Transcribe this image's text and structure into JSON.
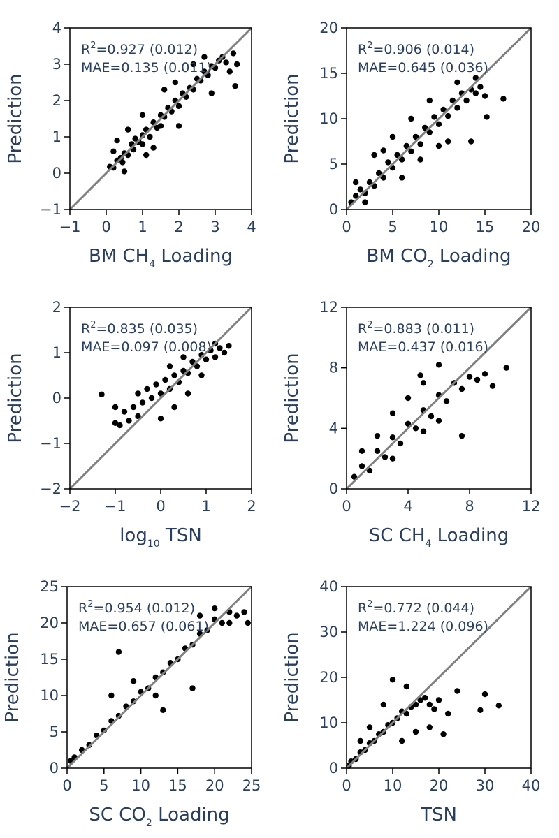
{
  "chart_data": [
    {
      "type": "scatter",
      "xlabel": "BM CH",
      "xlabel_sub": "4",
      "xlabel_suffix": " Loading",
      "ylabel": "Prediction",
      "xlim": [
        -1,
        4
      ],
      "ylim": [
        -1,
        4
      ],
      "xticks": [
        -1,
        0,
        1,
        2,
        3,
        4
      ],
      "yticks": [
        -1,
        0,
        1,
        2,
        3,
        4
      ],
      "xtick_labels": [
        "−1",
        "0",
        "1",
        "2",
        "3",
        "4"
      ],
      "ytick_labels": [
        "−1",
        "0",
        "1",
        "2",
        "3",
        "4"
      ],
      "annotation": {
        "r2_value": "=0.927 (0.012)",
        "mae_text": "MAE=0.135 (0.011)"
      },
      "identity_line": true,
      "point_color": "#000000",
      "points": [
        [
          0.1,
          0.18
        ],
        [
          0.2,
          0.15
        ],
        [
          0.3,
          0.35
        ],
        [
          0.4,
          0.42
        ],
        [
          0.45,
          0.3
        ],
        [
          0.5,
          0.55
        ],
        [
          0.6,
          0.5
        ],
        [
          0.7,
          0.8
        ],
        [
          0.75,
          0.65
        ],
        [
          0.8,
          0.95
        ],
        [
          0.9,
          0.85
        ],
        [
          1.0,
          1.05
        ],
        [
          1.0,
          0.8
        ],
        [
          1.1,
          1.2
        ],
        [
          1.2,
          1.0
        ],
        [
          1.3,
          1.4
        ],
        [
          1.4,
          1.25
        ],
        [
          1.5,
          1.6
        ],
        [
          1.5,
          1.3
        ],
        [
          1.6,
          1.55
        ],
        [
          1.7,
          1.8
        ],
        [
          1.8,
          1.7
        ],
        [
          1.9,
          2.0
        ],
        [
          2.0,
          1.85
        ],
        [
          2.1,
          2.2
        ],
        [
          2.2,
          2.1
        ],
        [
          2.3,
          2.35
        ],
        [
          2.4,
          2.3
        ],
        [
          2.5,
          2.6
        ],
        [
          2.6,
          2.55
        ],
        [
          2.7,
          2.8
        ],
        [
          2.8,
          2.7
        ],
        [
          2.9,
          2.95
        ],
        [
          3.0,
          2.9
        ],
        [
          3.1,
          3.1
        ],
        [
          3.2,
          3.2
        ],
        [
          3.3,
          3.05
        ],
        [
          3.5,
          3.3
        ],
        [
          3.6,
          3.0
        ],
        [
          3.55,
          2.4
        ],
        [
          0.3,
          0.9
        ],
        [
          0.6,
          1.2
        ],
        [
          1.0,
          1.6
        ],
        [
          1.1,
          0.5
        ],
        [
          1.6,
          2.3
        ],
        [
          2.0,
          1.3
        ],
        [
          2.4,
          3.0
        ],
        [
          2.9,
          2.2
        ],
        [
          0.2,
          0.6
        ],
        [
          0.5,
          0.05
        ],
        [
          1.3,
          0.7
        ],
        [
          1.9,
          2.5
        ],
        [
          2.7,
          3.2
        ],
        [
          3.4,
          2.8
        ]
      ]
    },
    {
      "type": "scatter",
      "xlabel": "BM CO",
      "xlabel_sub": "2",
      "xlabel_suffix": " Loading",
      "ylabel": "Prediction",
      "xlim": [
        0,
        20
      ],
      "ylim": [
        0,
        20
      ],
      "xticks": [
        0,
        5,
        10,
        15,
        20
      ],
      "yticks": [
        0,
        5,
        10,
        15,
        20
      ],
      "xtick_labels": [
        "0",
        "5",
        "10",
        "15",
        "20"
      ],
      "ytick_labels": [
        "0",
        "5",
        "10",
        "15",
        "20"
      ],
      "annotation": {
        "r2_value": "=0.906 (0.014)",
        "mae_text": "MAE=0.645 (0.036)"
      },
      "identity_line": true,
      "point_color": "#000000",
      "points": [
        [
          0.5,
          0.8
        ],
        [
          1,
          1.5
        ],
        [
          1.5,
          2.2
        ],
        [
          2,
          1.8
        ],
        [
          2.5,
          3.0
        ],
        [
          3,
          2.6
        ],
        [
          3.5,
          4.0
        ],
        [
          4,
          3.5
        ],
        [
          4.5,
          5.2
        ],
        [
          5,
          4.6
        ],
        [
          5.5,
          6.0
        ],
        [
          6,
          5.5
        ],
        [
          6.5,
          7.0
        ],
        [
          7,
          6.4
        ],
        [
          7.5,
          8.0
        ],
        [
          8,
          7.2
        ],
        [
          8.5,
          9.0
        ],
        [
          9,
          8.5
        ],
        [
          9.5,
          10.2
        ],
        [
          10,
          9.4
        ],
        [
          10.5,
          11.0
        ],
        [
          11,
          10.3
        ],
        [
          11.5,
          12.0
        ],
        [
          12,
          11.2
        ],
        [
          12.5,
          12.8
        ],
        [
          13,
          12.0
        ],
        [
          13.5,
          13.2
        ],
        [
          14,
          12.8
        ],
        [
          14.5,
          13.5
        ],
        [
          15,
          12.5
        ],
        [
          17,
          12.2
        ],
        [
          15.2,
          10.2
        ],
        [
          13.5,
          7.5
        ],
        [
          3,
          6
        ],
        [
          5,
          8
        ],
        [
          7,
          10
        ],
        [
          9,
          12
        ],
        [
          6,
          3.5
        ],
        [
          8,
          5.5
        ],
        [
          10,
          7
        ],
        [
          1,
          3
        ],
        [
          2,
          0.8
        ],
        [
          4,
          6.5
        ],
        [
          12,
          14
        ],
        [
          11,
          7.5
        ],
        [
          14,
          14.5
        ]
      ]
    },
    {
      "type": "scatter",
      "xlabel": "log",
      "xlabel_sub": "10",
      "xlabel_suffix": " TSN",
      "ylabel": "Prediction",
      "xlim": [
        -2,
        2
      ],
      "ylim": [
        -2,
        2
      ],
      "xticks": [
        -2,
        -1,
        0,
        1,
        2
      ],
      "yticks": [
        -2,
        -1,
        0,
        1,
        2
      ],
      "xtick_labels": [
        "−2",
        "−1",
        "0",
        "1",
        "2"
      ],
      "ytick_labels": [
        "−2",
        "−1",
        "0",
        "1",
        "2"
      ],
      "annotation": {
        "r2_value": "=0.835 (0.035)",
        "mae_text": "MAE=0.097 (0.008)"
      },
      "identity_line": true,
      "point_color": "#000000",
      "points": [
        [
          -1.3,
          0.08
        ],
        [
          -1.0,
          -0.55
        ],
        [
          -1.0,
          -0.2
        ],
        [
          -0.9,
          -0.6
        ],
        [
          -0.8,
          -0.3
        ],
        [
          -0.7,
          -0.5
        ],
        [
          -0.6,
          -0.2
        ],
        [
          -0.5,
          0.1
        ],
        [
          -0.4,
          -0.1
        ],
        [
          -0.3,
          0.2
        ],
        [
          -0.2,
          0.0
        ],
        [
          -0.1,
          0.3
        ],
        [
          0.0,
          0.1
        ],
        [
          0.1,
          0.4
        ],
        [
          0.2,
          0.2
        ],
        [
          0.3,
          0.5
        ],
        [
          0.4,
          0.35
        ],
        [
          0.5,
          0.6
        ],
        [
          0.6,
          0.55
        ],
        [
          0.7,
          0.8
        ],
        [
          0.8,
          0.7
        ],
        [
          0.9,
          0.95
        ],
        [
          1.0,
          0.85
        ],
        [
          1.1,
          1.05
        ],
        [
          1.2,
          0.9
        ],
        [
          1.3,
          1.1
        ],
        [
          1.4,
          1.0
        ],
        [
          1.5,
          1.15
        ],
        [
          0.3,
          -0.2
        ],
        [
          0.6,
          0.1
        ],
        [
          0.9,
          0.5
        ],
        [
          0.0,
          -0.45
        ],
        [
          -0.5,
          -0.4
        ],
        [
          0.2,
          0.7
        ],
        [
          0.5,
          0.9
        ],
        [
          1.2,
          1.2
        ]
      ]
    },
    {
      "type": "scatter",
      "xlabel": "SC CH",
      "xlabel_sub": "4",
      "xlabel_suffix": " Loading",
      "ylabel": "Prediction",
      "xlim": [
        0,
        12
      ],
      "ylim": [
        0,
        12
      ],
      "xticks": [
        0,
        4,
        8,
        12
      ],
      "yticks": [
        0,
        4,
        8,
        12
      ],
      "xtick_labels": [
        "0",
        "4",
        "8",
        "12"
      ],
      "ytick_labels": [
        "0",
        "4",
        "8",
        "12"
      ],
      "annotation": {
        "r2_value": "=0.883 (0.011)",
        "mae_text": "MAE=0.437 (0.016)"
      },
      "identity_line": true,
      "point_color": "#000000",
      "points": [
        [
          0.5,
          0.8
        ],
        [
          1.0,
          1.5
        ],
        [
          1.5,
          1.2
        ],
        [
          2.0,
          2.5
        ],
        [
          2.5,
          2.1
        ],
        [
          3.0,
          3.4
        ],
        [
          3.5,
          3.0
        ],
        [
          4.0,
          4.3
        ],
        [
          4.5,
          4.0
        ],
        [
          5.0,
          5.2
        ],
        [
          5.5,
          4.8
        ],
        [
          6.0,
          6.2
        ],
        [
          6.5,
          5.8
        ],
        [
          7.0,
          7.0
        ],
        [
          7.5,
          6.6
        ],
        [
          8.0,
          7.4
        ],
        [
          8.5,
          7.2
        ],
        [
          9.0,
          7.6
        ],
        [
          9.5,
          6.8
        ],
        [
          10.4,
          8.0
        ],
        [
          7.5,
          3.5
        ],
        [
          3,
          5
        ],
        [
          4,
          6
        ],
        [
          5,
          7
        ],
        [
          6,
          8.2
        ],
        [
          2,
          3.5
        ],
        [
          3,
          2
        ],
        [
          5,
          3.8
        ],
        [
          6,
          4.5
        ],
        [
          1,
          2.5
        ],
        [
          4.8,
          7.5
        ]
      ]
    },
    {
      "type": "scatter",
      "xlabel": "SC CO",
      "xlabel_sub": "2",
      "xlabel_suffix": " Loading",
      "ylabel": "Prediction",
      "xlim": [
        0,
        25
      ],
      "ylim": [
        0,
        25
      ],
      "xticks": [
        0,
        5,
        10,
        15,
        20,
        25
      ],
      "yticks": [
        0,
        5,
        10,
        15,
        20,
        25
      ],
      "xtick_labels": [
        "0",
        "5",
        "10",
        "15",
        "20",
        "25"
      ],
      "ytick_labels": [
        "0",
        "5",
        "10",
        "15",
        "20",
        "25"
      ],
      "annotation": {
        "r2_value": "=0.954 (0.012)",
        "mae_text": "MAE=0.657 (0.061)"
      },
      "identity_line": true,
      "point_color": "#000000",
      "points": [
        [
          0.5,
          1.0
        ],
        [
          1,
          1.5
        ],
        [
          2,
          2.5
        ],
        [
          3,
          3.2
        ],
        [
          4,
          4.5
        ],
        [
          5,
          5.2
        ],
        [
          6,
          6.5
        ],
        [
          7,
          7.2
        ],
        [
          8,
          8.5
        ],
        [
          9,
          9.2
        ],
        [
          10,
          10.5
        ],
        [
          11,
          11.0
        ],
        [
          12,
          12.5
        ],
        [
          13,
          13.2
        ],
        [
          14,
          14.5
        ],
        [
          15,
          15.0
        ],
        [
          16,
          16.5
        ],
        [
          17,
          17.0
        ],
        [
          18,
          18.5
        ],
        [
          19,
          19.0
        ],
        [
          20,
          20.5
        ],
        [
          21,
          20.0
        ],
        [
          22,
          21.5
        ],
        [
          23,
          21.0
        ],
        [
          24,
          21.5
        ],
        [
          24.5,
          20.0
        ],
        [
          7,
          16
        ],
        [
          6,
          10
        ],
        [
          13,
          8
        ],
        [
          17,
          11
        ],
        [
          20,
          22
        ],
        [
          12,
          10
        ],
        [
          9,
          12
        ],
        [
          18,
          21
        ],
        [
          22,
          20
        ]
      ]
    },
    {
      "type": "scatter",
      "xlabel": "TSN",
      "xlabel_sub": "",
      "xlabel_suffix": "",
      "ylabel": "Prediction",
      "xlim": [
        0,
        40
      ],
      "ylim": [
        0,
        40
      ],
      "xticks": [
        0,
        10,
        20,
        30,
        40
      ],
      "yticks": [
        0,
        10,
        20,
        30,
        40
      ],
      "xtick_labels": [
        "0",
        "10",
        "20",
        "30",
        "40"
      ],
      "ytick_labels": [
        "0",
        "10",
        "20",
        "30",
        "40"
      ],
      "annotation": {
        "r2_value": "=0.772 (0.044)",
        "mae_text": "MAE=1.224 (0.096)"
      },
      "identity_line": true,
      "point_color": "#000000",
      "points": [
        [
          0.5,
          0.5
        ],
        [
          1,
          1.5
        ],
        [
          2,
          2.0
        ],
        [
          3,
          3.5
        ],
        [
          4,
          4.0
        ],
        [
          5,
          5.5
        ],
        [
          6,
          6.0
        ],
        [
          7,
          7.5
        ],
        [
          8,
          8.0
        ],
        [
          9,
          9.5
        ],
        [
          10,
          10.0
        ],
        [
          11,
          11.0
        ],
        [
          12,
          12.5
        ],
        [
          13,
          12.0
        ],
        [
          14,
          13.5
        ],
        [
          15,
          14.0
        ],
        [
          16,
          15.0
        ],
        [
          17,
          15.5
        ],
        [
          18,
          14.0
        ],
        [
          19,
          13.0
        ],
        [
          20,
          15.0
        ],
        [
          22,
          12.0
        ],
        [
          24,
          17.0
        ],
        [
          29,
          12.8
        ],
        [
          30,
          16.3
        ],
        [
          33,
          13.8
        ],
        [
          10,
          19.5
        ],
        [
          13,
          18
        ],
        [
          8,
          14
        ],
        [
          15,
          8
        ],
        [
          18,
          9
        ],
        [
          21,
          7.5
        ],
        [
          5,
          9
        ],
        [
          12,
          6
        ],
        [
          3,
          6
        ]
      ]
    }
  ]
}
